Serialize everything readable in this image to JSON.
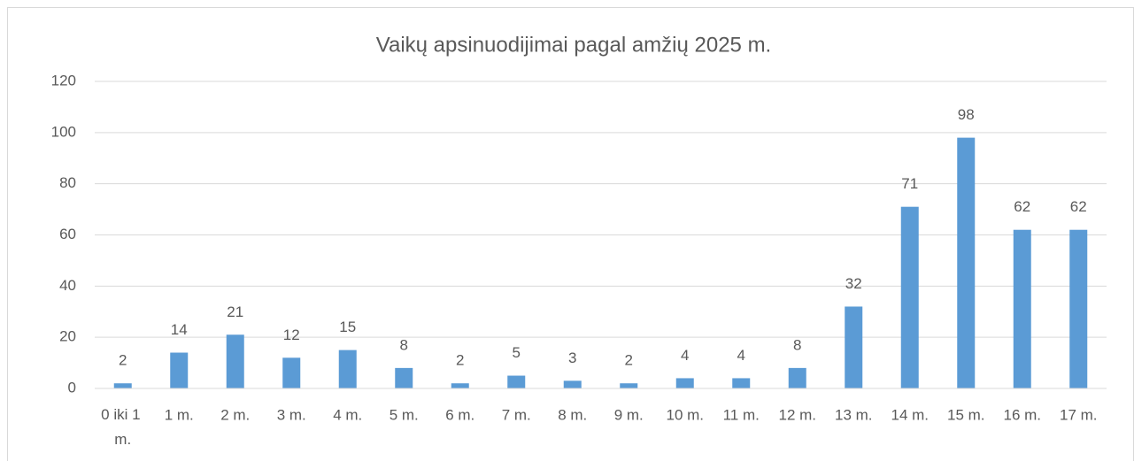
{
  "chart_data": {
    "type": "bar",
    "title": "Vaikų apsinuodijimai pagal amžių 2025 m.",
    "categories": [
      "0 iki 1 m.",
      "1 m.",
      "2 m.",
      "3 m.",
      "4 m.",
      "5 m.",
      "6 m.",
      "7 m.",
      "8 m.",
      "9 m.",
      "10 m.",
      "11 m.",
      "12 m.",
      "13 m.",
      "14 m.",
      "15 m.",
      "16 m.",
      "17 m."
    ],
    "values": [
      2,
      14,
      21,
      12,
      15,
      8,
      2,
      5,
      3,
      2,
      4,
      4,
      8,
      32,
      71,
      98,
      62,
      62
    ],
    "color": "#5b9bd5",
    "ylim": [
      0,
      120
    ],
    "yticks": [
      0,
      20,
      40,
      60,
      80,
      100,
      120
    ],
    "grid": true
  }
}
